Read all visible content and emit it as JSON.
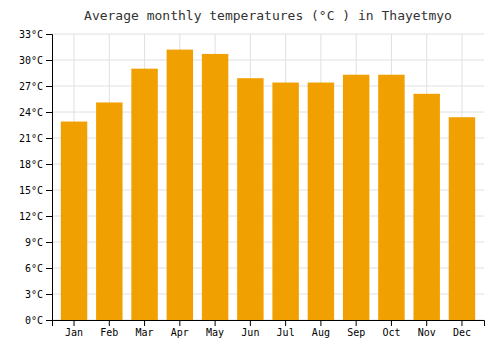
{
  "chart_data": {
    "type": "bar",
    "title": "Average monthly temperatures (°C ) in Thayetmyo",
    "categories": [
      "Jan",
      "Feb",
      "Mar",
      "Apr",
      "May",
      "Jun",
      "Jul",
      "Aug",
      "Sep",
      "Oct",
      "Nov",
      "Dec"
    ],
    "values": [
      22.9,
      25.1,
      29.0,
      31.2,
      30.7,
      27.9,
      27.4,
      27.4,
      28.3,
      28.3,
      26.1,
      23.4
    ],
    "color": "#F0A000",
    "ylim": [
      0,
      33
    ],
    "yticks": [
      {
        "value": 0,
        "label": "0°C"
      },
      {
        "value": 3,
        "label": "3°C"
      },
      {
        "value": 6,
        "label": "6°C"
      },
      {
        "value": 9,
        "label": "9°C"
      },
      {
        "value": 12,
        "label": "12°C"
      },
      {
        "value": 15,
        "label": "15°C"
      },
      {
        "value": 18,
        "label": "18°C"
      },
      {
        "value": 21,
        "label": "21°C"
      },
      {
        "value": 24,
        "label": "24°C"
      },
      {
        "value": 27,
        "label": "27°C"
      },
      {
        "value": 30,
        "label": "30°C"
      },
      {
        "value": 33,
        "label": "33°C"
      }
    ],
    "grid": true
  }
}
